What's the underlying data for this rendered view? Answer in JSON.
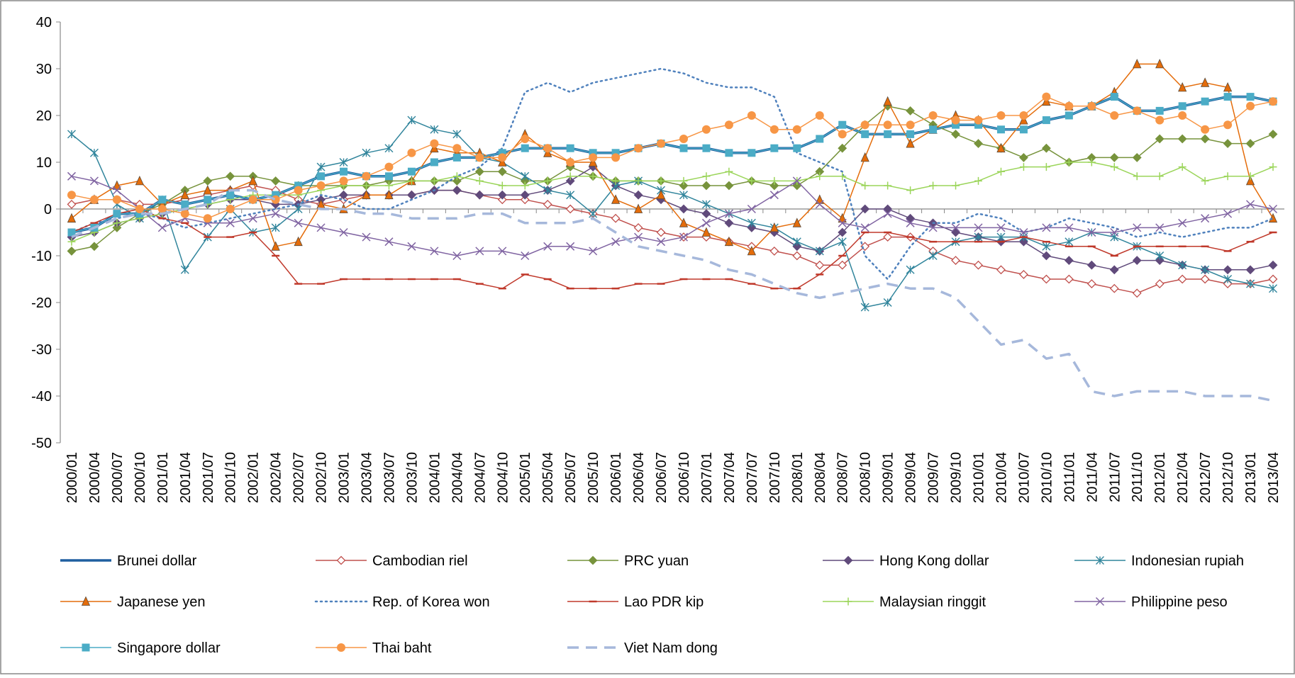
{
  "chart_data": {
    "type": "line",
    "categories": [
      "2000/01",
      "2000/04",
      "2000/07",
      "2000/10",
      "2001/01",
      "2001/04",
      "2001/07",
      "2001/10",
      "2002/01",
      "2002/04",
      "2002/07",
      "2002/10",
      "2003/01",
      "2003/04",
      "2003/07",
      "2003/10",
      "2004/01",
      "2004/04",
      "2004/07",
      "2004/10",
      "2005/01",
      "2005/04",
      "2005/07",
      "2005/10",
      "2006/01",
      "2006/04",
      "2006/07",
      "2006/10",
      "2007/01",
      "2007/04",
      "2007/07",
      "2007/10",
      "2008/01",
      "2008/04",
      "2008/07",
      "2008/10",
      "2009/01",
      "2009/04",
      "2009/07",
      "2009/10",
      "2010/01",
      "2010/04",
      "2010/07",
      "2010/10",
      "2011/01",
      "2011/04",
      "2011/07",
      "2011/10",
      "2012/01",
      "2012/04",
      "2012/07",
      "2012/10",
      "2013/01",
      "2013/04"
    ],
    "ylim": [
      -50,
      40
    ],
    "yticks": [
      -50,
      -40,
      -30,
      -20,
      -10,
      0,
      10,
      20,
      30,
      40
    ],
    "grid": false,
    "series": [
      {
        "name": "Brunei dollar",
        "color": "#1f5fa0",
        "marker": "none",
        "dash": "solid",
        "width": 3.5,
        "values": [
          -5,
          -4,
          -1,
          -1,
          2,
          1,
          2,
          3,
          2,
          3,
          5,
          7,
          8,
          7,
          7,
          8,
          10,
          11,
          11,
          12,
          13,
          13,
          13,
          12,
          12,
          13,
          14,
          13,
          13,
          12,
          12,
          13,
          13,
          15,
          18,
          16,
          16,
          16,
          17,
          18,
          18,
          17,
          17,
          19,
          20,
          22,
          24,
          21,
          21,
          22,
          23,
          24,
          24,
          23
        ]
      },
      {
        "name": "Cambodian riel",
        "color": "#c0504d",
        "marker": "diamond-open",
        "dash": "solid",
        "width": 1.5,
        "values": [
          1,
          2,
          2,
          1,
          1,
          2,
          3,
          4,
          5,
          4,
          2,
          1,
          2,
          3,
          3,
          3,
          4,
          4,
          3,
          2,
          2,
          1,
          0,
          -1,
          -2,
          -4,
          -5,
          -6,
          -6,
          -7,
          -8,
          -9,
          -10,
          -12,
          -12,
          -8,
          -6,
          -6,
          -9,
          -11,
          -12,
          -13,
          -14,
          -15,
          -15,
          -16,
          -17,
          -18,
          -16,
          -15,
          -15,
          -16,
          -16,
          -15
        ]
      },
      {
        "name": "PRC yuan",
        "color": "#77933c",
        "marker": "diamond",
        "dash": "solid",
        "width": 1.5,
        "values": [
          -9,
          -8,
          -4,
          -1,
          1,
          4,
          6,
          7,
          7,
          6,
          5,
          5,
          5,
          5,
          6,
          6,
          6,
          6,
          8,
          8,
          6,
          6,
          9,
          7,
          6,
          6,
          6,
          5,
          5,
          5,
          6,
          5,
          5,
          8,
          13,
          18,
          22,
          21,
          18,
          16,
          14,
          13,
          11,
          13,
          10,
          11,
          11,
          11,
          15,
          15,
          15,
          14,
          14,
          16
        ]
      },
      {
        "name": "Hong Kong dollar",
        "color": "#604a7b",
        "marker": "diamond",
        "dash": "solid",
        "width": 1.5,
        "values": [
          -6,
          -5,
          -3,
          -2,
          -1,
          0,
          1,
          2,
          2,
          1,
          1,
          2,
          3,
          3,
          3,
          3,
          4,
          4,
          3,
          3,
          3,
          4,
          6,
          9,
          5,
          3,
          2,
          0,
          -1,
          -3,
          -4,
          -5,
          -8,
          -9,
          -5,
          0,
          0,
          -2,
          -3,
          -5,
          -6,
          -7,
          -7,
          -10,
          -11,
          -12,
          -13,
          -11,
          -11,
          -12,
          -13,
          -13,
          -13,
          -12
        ]
      },
      {
        "name": "Indonesian rupiah",
        "color": "#31859c",
        "marker": "star",
        "dash": "solid",
        "width": 1.5,
        "values": [
          16,
          12,
          1,
          -2,
          2,
          -13,
          -6,
          0,
          -5,
          -4,
          0,
          9,
          10,
          12,
          13,
          19,
          17,
          16,
          11,
          10,
          7,
          4,
          3,
          -1,
          5,
          6,
          4,
          3,
          1,
          -1,
          -3,
          -4,
          -7,
          -9,
          -7,
          -21,
          -20,
          -13,
          -10,
          -7,
          -6,
          -6,
          -6,
          -8,
          -7,
          -5,
          -6,
          -8,
          -10,
          -12,
          -13,
          -15,
          -16,
          -17
        ]
      },
      {
        "name": "Japanese yen",
        "color": "#e46c0a",
        "marker": "triangle",
        "dash": "solid",
        "width": 1.5,
        "values": [
          -2,
          2,
          5,
          6,
          1,
          3,
          4,
          4,
          6,
          -8,
          -7,
          1,
          0,
          3,
          3,
          6,
          13,
          12,
          12,
          10,
          16,
          12,
          10,
          10,
          2,
          0,
          3,
          -3,
          -5,
          -7,
          -9,
          -4,
          -3,
          2,
          -2,
          11,
          23,
          14,
          17,
          20,
          19,
          13,
          19,
          23,
          22,
          22,
          25,
          31,
          31,
          26,
          27,
          26,
          6,
          -2
        ]
      },
      {
        "name": "Rep. of Korea won",
        "color": "#4f81bd",
        "marker": "none",
        "dash": "dot",
        "width": 2.5,
        "values": [
          -5,
          -3,
          -2,
          -1,
          -2,
          -4,
          -3,
          -2,
          -1,
          0,
          1,
          3,
          2,
          0,
          0,
          2,
          4,
          7,
          9,
          13,
          25,
          27,
          25,
          27,
          28,
          29,
          30,
          29,
          27,
          26,
          26,
          24,
          12,
          10,
          8,
          -10,
          -15,
          -8,
          -3,
          -3,
          -1,
          -2,
          -5,
          -4,
          -2,
          -3,
          -4,
          -6,
          -5,
          -6,
          -5,
          -4,
          -4,
          -2
        ]
      },
      {
        "name": "Lao PDR kip",
        "color": "#c0392b",
        "marker": "dash",
        "dash": "solid",
        "width": 1.5,
        "values": [
          -5,
          -3,
          -1,
          0,
          -2,
          -3,
          -6,
          -6,
          -5,
          -10,
          -16,
          -16,
          -15,
          -15,
          -15,
          -15,
          -15,
          -15,
          -16,
          -17,
          -14,
          -15,
          -17,
          -17,
          -17,
          -16,
          -16,
          -15,
          -15,
          -15,
          -16,
          -17,
          -17,
          -14,
          -10,
          -5,
          -5,
          -6,
          -7,
          -7,
          -7,
          -7,
          -6,
          -7,
          -8,
          -8,
          -10,
          -8,
          -8,
          -8,
          -8,
          -9,
          -7,
          -5
        ]
      },
      {
        "name": "Malaysian ringgit",
        "color": "#9bd55a",
        "marker": "plus",
        "dash": "solid",
        "width": 1.5,
        "values": [
          -7,
          -5,
          -3,
          -2,
          -1,
          0,
          1,
          2,
          3,
          3,
          3,
          4,
          5,
          5,
          5,
          6,
          6,
          7,
          6,
          5,
          5,
          6,
          7,
          7,
          6,
          6,
          6,
          6,
          7,
          8,
          6,
          6,
          6,
          7,
          7,
          5,
          5,
          4,
          5,
          5,
          6,
          8,
          9,
          9,
          10,
          10,
          9,
          7,
          7,
          9,
          6,
          7,
          7,
          9
        ]
      },
      {
        "name": "Philippine peso",
        "color": "#8064a2",
        "marker": "x",
        "dash": "solid",
        "width": 1.5,
        "values": [
          7,
          6,
          4,
          0,
          -4,
          -2,
          -3,
          -3,
          -2,
          -1,
          -3,
          -4,
          -5,
          -6,
          -7,
          -8,
          -9,
          -10,
          -9,
          -9,
          -10,
          -8,
          -8,
          -9,
          -7,
          -6,
          -7,
          -6,
          -3,
          -1,
          0,
          3,
          6,
          1,
          -3,
          -4,
          -1,
          -3,
          -4,
          -4,
          -4,
          -4,
          -5,
          -4,
          -4,
          -5,
          -5,
          -4,
          -4,
          -3,
          -2,
          -1,
          1,
          0
        ]
      },
      {
        "name": "Singapore dollar",
        "color": "#4bacc6",
        "marker": "square",
        "dash": "solid",
        "width": 1.5,
        "values": [
          -5,
          -4,
          -1,
          -1,
          2,
          1,
          2,
          3,
          2,
          3,
          5,
          7,
          8,
          7,
          7,
          8,
          10,
          11,
          11,
          12,
          13,
          13,
          13,
          12,
          12,
          13,
          14,
          13,
          13,
          12,
          12,
          13,
          13,
          15,
          18,
          16,
          16,
          16,
          17,
          18,
          18,
          17,
          17,
          19,
          20,
          22,
          24,
          21,
          21,
          22,
          23,
          24,
          24,
          23
        ]
      },
      {
        "name": "Thai baht",
        "color": "#f79646",
        "marker": "circle",
        "dash": "solid",
        "width": 1.5,
        "values": [
          3,
          2,
          2,
          0,
          0,
          -1,
          -2,
          0,
          2,
          2,
          4,
          5,
          6,
          7,
          9,
          12,
          14,
          13,
          11,
          11,
          15,
          13,
          10,
          11,
          11,
          13,
          14,
          15,
          17,
          18,
          20,
          17,
          17,
          20,
          16,
          18,
          18,
          18,
          20,
          19,
          19,
          20,
          20,
          24,
          22,
          22,
          20,
          21,
          19,
          20,
          17,
          18,
          22,
          23
        ]
      },
      {
        "name": "Viet Nam dong",
        "color": "#a6b8db",
        "marker": "none",
        "dash": "dash",
        "width": 3.5,
        "values": [
          -6,
          -4,
          -2,
          -1,
          -1,
          0,
          1,
          4,
          4,
          2,
          1,
          0,
          0,
          -1,
          -1,
          -2,
          -2,
          -2,
          -1,
          -1,
          -3,
          -3,
          -3,
          -2,
          -5,
          -8,
          -9,
          -10,
          -11,
          -13,
          -14,
          -16,
          -18,
          -19,
          -18,
          -17,
          -16,
          -17,
          -17,
          -19,
          -24,
          -29,
          -28,
          -32,
          -31,
          -39,
          -40,
          -39,
          -39,
          -39,
          -40,
          -40,
          -40,
          -41
        ]
      }
    ]
  }
}
